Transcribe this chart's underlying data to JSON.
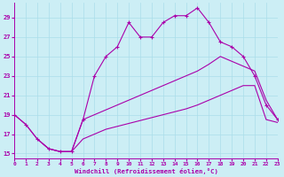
{
  "xlabel": "Windchill (Refroidissement éolien,°C)",
  "bg_color": "#cceef5",
  "grid_color": "#aaddea",
  "line_color": "#aa00aa",
  "xlim": [
    0,
    23
  ],
  "ylim": [
    14.5,
    30.5
  ],
  "yticks": [
    15,
    17,
    19,
    21,
    23,
    25,
    27,
    29
  ],
  "xticks": [
    0,
    1,
    2,
    3,
    4,
    5,
    6,
    7,
    8,
    9,
    10,
    11,
    12,
    13,
    14,
    15,
    16,
    17,
    18,
    19,
    20,
    21,
    22,
    23
  ],
  "line1_x": [
    0,
    1,
    2,
    3,
    4,
    5,
    6,
    7,
    8,
    9,
    10,
    11,
    12,
    13,
    14,
    15,
    16,
    17,
    18,
    19,
    20,
    21,
    22,
    23
  ],
  "line1_y": [
    19,
    18,
    16.5,
    15.5,
    15.2,
    15.2,
    18.5,
    23.0,
    25.0,
    26.0,
    28.5,
    27.0,
    27.0,
    28.5,
    29.2,
    29.2,
    30.0,
    28.5,
    26.5,
    26.0,
    25.0,
    23.0,
    20.0,
    18.5
  ],
  "line2_x": [
    0,
    1,
    2,
    3,
    4,
    5,
    6,
    7,
    8,
    9,
    10,
    11,
    12,
    13,
    14,
    15,
    16,
    17,
    18,
    19,
    20,
    21,
    22,
    23
  ],
  "line2_y": [
    19,
    18,
    16.5,
    15.5,
    15.2,
    15.2,
    18.5,
    19.0,
    19.5,
    20.0,
    20.5,
    21.0,
    21.5,
    22.0,
    22.5,
    23.0,
    23.5,
    24.2,
    25.0,
    24.5,
    24.0,
    23.5,
    20.5,
    18.5
  ],
  "line3_x": [
    2,
    3,
    4,
    5,
    6,
    7,
    8,
    9,
    10,
    11,
    12,
    13,
    14,
    15,
    16,
    17,
    18,
    19,
    20,
    21,
    22,
    23
  ],
  "line3_y": [
    16.5,
    15.5,
    15.2,
    15.2,
    16.5,
    17.0,
    17.5,
    17.8,
    18.1,
    18.4,
    18.7,
    19.0,
    19.3,
    19.6,
    20.0,
    20.5,
    21.0,
    21.5,
    22.0,
    22.0,
    18.5,
    18.2
  ],
  "ylabel_ticks": [
    "15",
    "17",
    "19",
    "21",
    "23",
    "25",
    "27",
    "29"
  ]
}
